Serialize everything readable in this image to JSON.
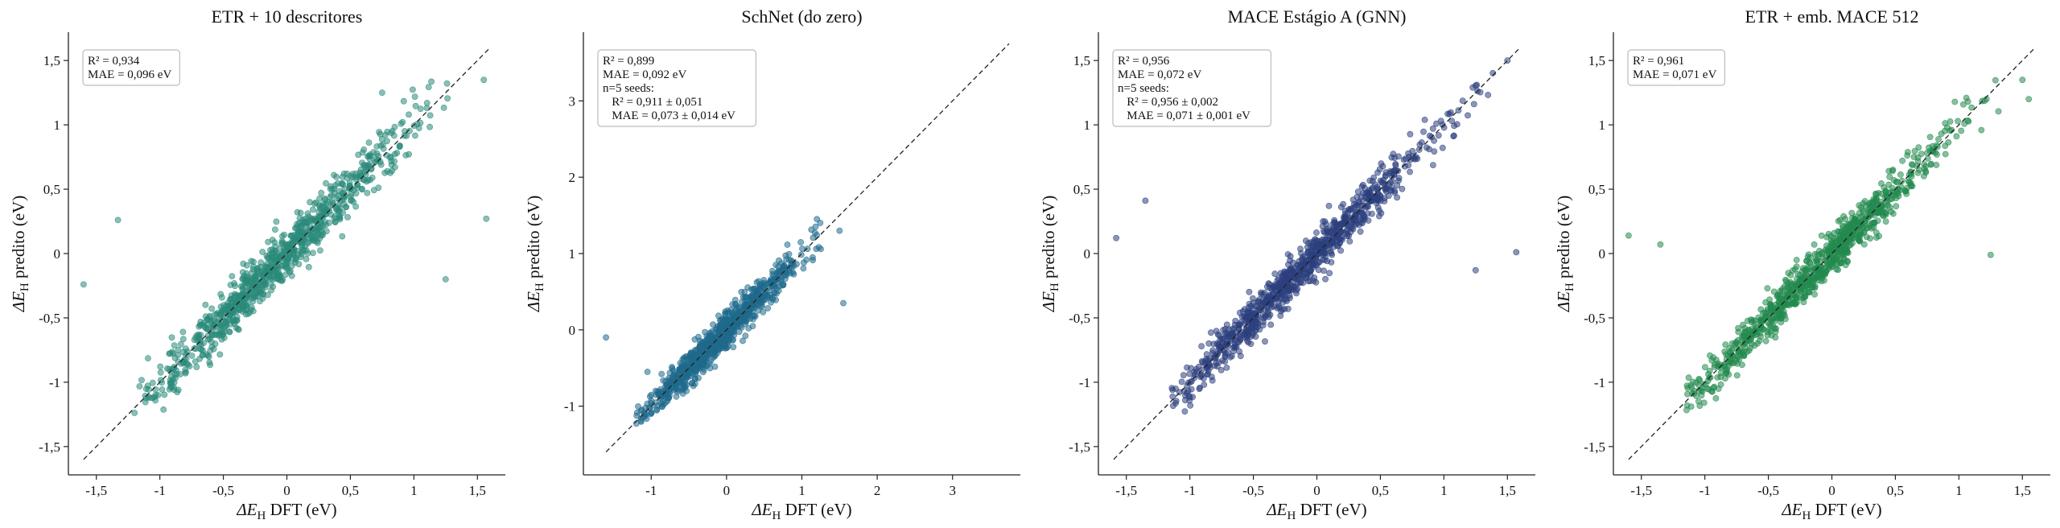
{
  "chart_data": [
    {
      "type": "scatter",
      "title": "ETR + 10 descritores",
      "xlabel": "DFT (eV)",
      "ylabel": "predito (eV)",
      "symbol": "ΔE",
      "subscript": "H",
      "xlim": [
        -1.72,
        1.72
      ],
      "ylim": [
        -1.72,
        1.72
      ],
      "xticks": [
        -1.5,
        -1,
        -0.5,
        0,
        0.5,
        1,
        1.5
      ],
      "xtick_labels": [
        "-1,5",
        "-1",
        "-0,5",
        "0",
        "0,5",
        "1",
        "1,5"
      ],
      "yticks": [
        -1.5,
        -1,
        -0.5,
        0,
        0.5,
        1,
        1.5
      ],
      "ytick_labels": [
        "-1,5",
        "-1",
        "-0,5",
        "0",
        "0,5",
        "1",
        "1,5"
      ],
      "diagonal": [
        -1.6,
        1.6
      ],
      "stats": [
        "R² = 0,934",
        "MAE = 0,096 eV"
      ],
      "color": "#2a8a7a",
      "scatter_spread": 0.1,
      "n_points": 900,
      "x_range": [
        -1.2,
        1.3
      ],
      "outliers": [
        [
          -1.6,
          -0.24
        ],
        [
          -1.33,
          0.26
        ],
        [
          1.57,
          0.27
        ],
        [
          1.25,
          -0.2
        ],
        [
          0.75,
          1.25
        ],
        [
          1.55,
          1.35
        ]
      ],
      "grid": false
    },
    {
      "type": "scatter",
      "title": "SchNet (do zero)",
      "xlabel": "DFT (eV)",
      "ylabel": "predito (eV)",
      "symbol": "ΔE",
      "subscript": "H",
      "xlim": [
        -1.9,
        3.9
      ],
      "ylim": [
        -1.9,
        3.9
      ],
      "xticks": [
        -1,
        0,
        1,
        2,
        3
      ],
      "xtick_labels": [
        "-1",
        "0",
        "1",
        "2",
        "3"
      ],
      "yticks": [
        -1,
        0,
        1,
        2,
        3
      ],
      "ytick_labels": [
        "-1",
        "0",
        "1",
        "2",
        "3"
      ],
      "diagonal": [
        -1.6,
        3.75
      ],
      "stats": [
        "R² = 0,899",
        "MAE = 0,092 eV",
        "n=5 seeds:",
        "  R² = 0,911 ± 0,051",
        "  MAE = 0,073 ± 0,014 eV"
      ],
      "color": "#1f6a8c",
      "scatter_spread": 0.11,
      "n_points": 900,
      "x_range": [
        -1.2,
        1.3
      ],
      "outliers": [
        [
          -1.6,
          -0.1
        ],
        [
          1.55,
          0.35
        ],
        [
          1.2,
          1.45
        ],
        [
          -1.05,
          -0.55
        ],
        [
          1.5,
          1.3
        ]
      ],
      "grid": false
    },
    {
      "type": "scatter",
      "title": "MACE Estágio A (GNN)",
      "xlabel": "DFT (eV)",
      "ylabel": "predito (eV)",
      "symbol": "ΔE",
      "subscript": "H",
      "xlim": [
        -1.72,
        1.72
      ],
      "ylim": [
        -1.72,
        1.72
      ],
      "xticks": [
        -1.5,
        -1,
        -0.5,
        0,
        0.5,
        1,
        1.5
      ],
      "xtick_labels": [
        "-1,5",
        "-1",
        "-0,5",
        "0",
        "0,5",
        "1",
        "1,5"
      ],
      "yticks": [
        -1.5,
        -1,
        -0.5,
        0,
        0.5,
        1,
        1.5
      ],
      "ytick_labels": [
        "-1,5",
        "-1",
        "-0,5",
        "0",
        "0,5",
        "1",
        "1,5"
      ],
      "diagonal": [
        -1.6,
        1.6
      ],
      "stats": [
        "R² = 0,956",
        "MAE = 0,072 eV",
        "n=5 seeds:",
        "  R² = 0,956 ± 0,002",
        "  MAE = 0,071 ± 0,001 eV"
      ],
      "color": "#2c3f7e",
      "scatter_spread": 0.08,
      "n_points": 900,
      "x_range": [
        -1.15,
        1.4
      ],
      "outliers": [
        [
          -1.58,
          0.12
        ],
        [
          -1.35,
          0.41
        ],
        [
          1.57,
          0.01
        ],
        [
          1.25,
          -0.13
        ],
        [
          1.5,
          1.5
        ]
      ],
      "grid": false
    },
    {
      "type": "scatter",
      "title": "ETR + emb. MACE 512",
      "xlabel": "DFT (eV)",
      "ylabel": "predito (eV)",
      "symbol": "ΔE",
      "subscript": "H",
      "xlim": [
        -1.72,
        1.72
      ],
      "ylim": [
        -1.72,
        1.72
      ],
      "xticks": [
        -1.5,
        -1,
        -0.5,
        0,
        0.5,
        1,
        1.5
      ],
      "xtick_labels": [
        "-1,5",
        "-1",
        "-0,5",
        "0",
        "0,5",
        "1",
        "1,5"
      ],
      "yticks": [
        -1.5,
        -1,
        -0.5,
        0,
        0.5,
        1,
        1.5
      ],
      "ytick_labels": [
        "-1,5",
        "-1",
        "-0,5",
        "0",
        "0,5",
        "1",
        "1,5"
      ],
      "diagonal": [
        -1.6,
        1.6
      ],
      "stats": [
        "R² = 0,961",
        "MAE = 0,071 eV"
      ],
      "color": "#238a4e",
      "scatter_spread": 0.08,
      "n_points": 900,
      "x_range": [
        -1.15,
        1.4
      ],
      "outliers": [
        [
          -1.6,
          0.14
        ],
        [
          -1.35,
          0.07
        ],
        [
          1.25,
          -0.01
        ],
        [
          1.55,
          1.2
        ],
        [
          1.5,
          1.35
        ]
      ],
      "grid": false
    }
  ]
}
